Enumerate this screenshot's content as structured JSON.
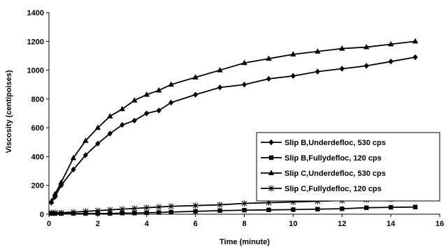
{
  "chart_data": {
    "type": "line",
    "title": "",
    "xlabel": "Time (minute)",
    "ylabel": "Viscosity (centipoises)",
    "xlim": [
      0,
      16
    ],
    "ylim": [
      0,
      1400
    ],
    "xticks": [
      0,
      2,
      4,
      6,
      8,
      10,
      12,
      14,
      16
    ],
    "yticks": [
      0,
      200,
      400,
      600,
      800,
      1000,
      1200,
      1400
    ],
    "grid": false,
    "legend_position": "right",
    "series": [
      {
        "name": "Slip B,Underdefloc, 530 cps",
        "marker": "diamond",
        "color": "#000000",
        "x": [
          0.1,
          0.25,
          0.5,
          1,
          1.5,
          2,
          2.5,
          3,
          3.5,
          4,
          4.5,
          5,
          6,
          7,
          8,
          9,
          10,
          11,
          12,
          13,
          14,
          15
        ],
        "y": [
          80,
          120,
          200,
          310,
          410,
          490,
          560,
          620,
          650,
          700,
          720,
          775,
          830,
          880,
          900,
          940,
          960,
          990,
          1010,
          1030,
          1060,
          1090
        ]
      },
      {
        "name": "Slip B,Fullydefloc, 120 cps",
        "marker": "square",
        "color": "#000000",
        "x": [
          0.1,
          0.25,
          0.5,
          1,
          1.5,
          2,
          2.5,
          3,
          3.5,
          4,
          4.5,
          5,
          6,
          7,
          8,
          9,
          10,
          11,
          12,
          13,
          14,
          15
        ],
        "y": [
          5,
          5,
          5,
          5,
          5,
          5,
          5,
          8,
          8,
          10,
          12,
          15,
          20,
          25,
          28,
          30,
          32,
          35,
          38,
          45,
          48,
          50
        ]
      },
      {
        "name": "Slip C,Underdefloc, 530 cps",
        "marker": "triangle",
        "color": "#000000",
        "x": [
          0.1,
          0.25,
          0.5,
          1,
          1.5,
          2,
          2.5,
          3,
          3.5,
          4,
          4.5,
          5,
          6,
          7,
          8,
          9,
          10,
          11,
          12,
          13,
          14,
          15
        ],
        "y": [
          90,
          140,
          220,
          390,
          510,
          600,
          680,
          730,
          790,
          830,
          860,
          900,
          950,
          1000,
          1050,
          1080,
          1110,
          1130,
          1150,
          1160,
          1180,
          1200
        ]
      },
      {
        "name": "Slip C,Fullydefloc, 120 cps",
        "marker": "star",
        "color": "#000000",
        "x": [
          0.1,
          0.25,
          0.5,
          1,
          1.5,
          2,
          2.5,
          3,
          3.5,
          4,
          4.5,
          5,
          6,
          7,
          8,
          9,
          10,
          11,
          12,
          13,
          14,
          15
        ],
        "y": [
          10,
          10,
          10,
          15,
          20,
          25,
          30,
          35,
          40,
          45,
          50,
          55,
          60,
          65,
          75,
          80,
          85,
          90,
          95,
          100,
          105,
          110
        ]
      }
    ]
  }
}
